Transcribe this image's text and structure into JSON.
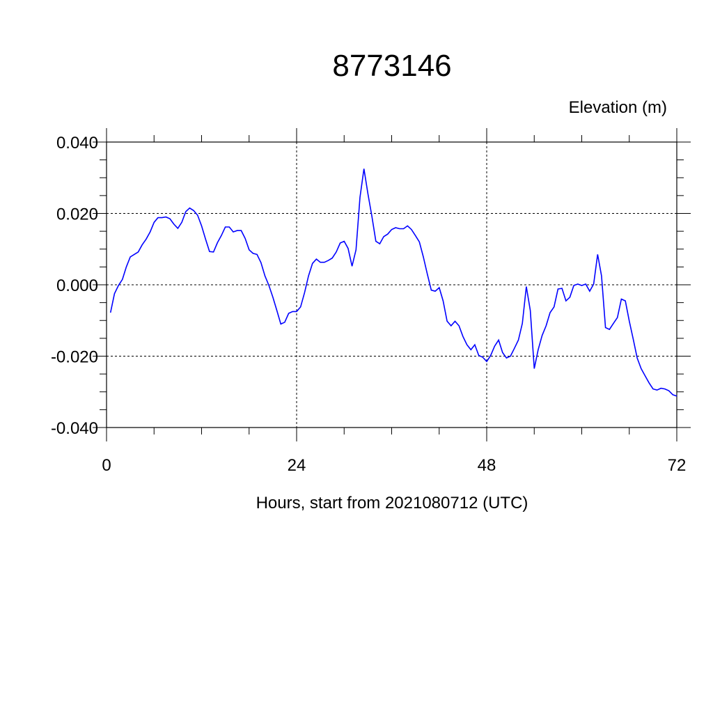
{
  "chart_data": {
    "type": "line",
    "title": "8773146",
    "ylabel": "Elevation (m)",
    "xlabel": "Hours, start from 2021080712 (UTC)",
    "xlim": [
      0,
      72
    ],
    "ylim": [
      -0.04,
      0.04
    ],
    "x_ticks": [
      0,
      24,
      48,
      72
    ],
    "x_tick_labels": [
      "0",
      "24",
      "48",
      "72"
    ],
    "y_ticks": [
      0.04,
      0.02,
      0.0,
      -0.02,
      -0.04
    ],
    "y_tick_labels": [
      "0.040",
      "0.020",
      "0.000",
      "-0.020",
      "-0.040"
    ],
    "grid": true,
    "series": [
      {
        "color": "#0000ff",
        "x": [
          0.5,
          1,
          1.5,
          2,
          2.5,
          3,
          3.5,
          4,
          4.5,
          5,
          5.5,
          6,
          6.5,
          7,
          7.5,
          8,
          8.5,
          9,
          9.5,
          10,
          10.5,
          11,
          11.5,
          12,
          12.5,
          13,
          13.5,
          14,
          14.5,
          15,
          15.5,
          16,
          16.5,
          17,
          17.5,
          18,
          18.5,
          19,
          19.5,
          20,
          20.5,
          21,
          21.5,
          22,
          22.5,
          23,
          23.5,
          24,
          24.5,
          25,
          25.5,
          26,
          26.5,
          27,
          27.5,
          28,
          28.5,
          29,
          29.5,
          30,
          30.5,
          31,
          31.5,
          32,
          32.5,
          33,
          33.5,
          34,
          34.5,
          35,
          35.5,
          36,
          36.5,
          37,
          37.5,
          38,
          38.5,
          39,
          39.5,
          40,
          40.5,
          41,
          41.5,
          42,
          42.5,
          43,
          43.5,
          44,
          44.5,
          45,
          45.5,
          46,
          46.5,
          47,
          47.5,
          48,
          48.5,
          49,
          49.5,
          50,
          50.5,
          51,
          51.5,
          52,
          52.5,
          53,
          53.5,
          54,
          54.5,
          55,
          55.5,
          56,
          56.5,
          57,
          57.5,
          58,
          58.5,
          59,
          59.5,
          60,
          60.5,
          61,
          61.5,
          62,
          62.5,
          63,
          63.5,
          64,
          64.5,
          65,
          65.5,
          66,
          66.5,
          67,
          67.5,
          68,
          68.5,
          69,
          69.5,
          70,
          70.5,
          71,
          71.5,
          72
        ],
        "y": [
          -0.0078,
          -0.0025,
          -0.0002,
          0.0015,
          0.005,
          0.0078,
          0.0085,
          0.0092,
          0.0112,
          0.0128,
          0.0148,
          0.0175,
          0.0188,
          0.0188,
          0.019,
          0.0185,
          0.017,
          0.0158,
          0.0175,
          0.0205,
          0.0215,
          0.0208,
          0.0195,
          0.0165,
          0.0128,
          0.0093,
          0.0092,
          0.0118,
          0.0138,
          0.0162,
          0.0162,
          0.0148,
          0.0152,
          0.0152,
          0.013,
          0.0098,
          0.0088,
          0.0085,
          0.0062,
          0.0025,
          -0.0002,
          -0.0035,
          -0.0072,
          -0.011,
          -0.0105,
          -0.008,
          -0.0075,
          -0.0075,
          -0.0062,
          -0.0022,
          0.0025,
          0.006,
          0.0072,
          0.0063,
          0.0063,
          0.0068,
          0.0075,
          0.0092,
          0.0117,
          0.0122,
          0.0102,
          0.0052,
          0.0098,
          0.0245,
          0.0325,
          0.0255,
          0.0192,
          0.0122,
          0.0115,
          0.0135,
          0.0142,
          0.0155,
          0.016,
          0.0157,
          0.0157,
          0.0165,
          0.0155,
          0.0138,
          0.012,
          0.0078,
          0.003,
          -0.0015,
          -0.0018,
          -0.0008,
          -0.0045,
          -0.0102,
          -0.0115,
          -0.0102,
          -0.0115,
          -0.0145,
          -0.0168,
          -0.0182,
          -0.0168,
          -0.0198,
          -0.0203,
          -0.0215,
          -0.0198,
          -0.0172,
          -0.0155,
          -0.019,
          -0.0205,
          -0.02,
          -0.0178,
          -0.0155,
          -0.0108,
          -0.0005,
          -0.0072,
          -0.0235,
          -0.0182,
          -0.0142,
          -0.0115,
          -0.0078,
          -0.0062,
          -0.0012,
          -0.001,
          -0.0045,
          -0.0035,
          -0.0002,
          0.0002,
          -0.0002,
          0.0002,
          -0.0018,
          0.0002,
          0.0085,
          0.0025,
          -0.012,
          -0.0125,
          -0.0108,
          -0.0092,
          -0.004,
          -0.0045,
          -0.0102,
          -0.0152,
          -0.0205,
          -0.0235,
          -0.0255,
          -0.0275,
          -0.0292,
          -0.0295,
          -0.029,
          -0.0292,
          -0.0297,
          -0.0308,
          -0.0312
        ]
      }
    ]
  }
}
